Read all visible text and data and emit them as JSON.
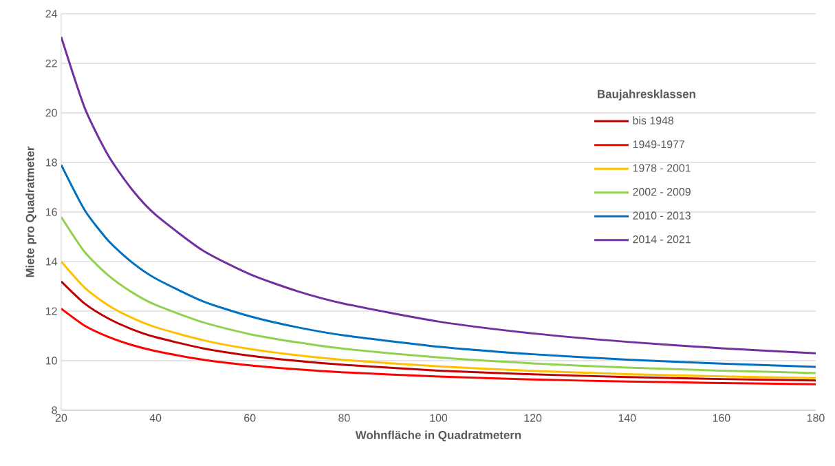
{
  "chart_data": {
    "type": "line",
    "xlabel": "Wohnfläche in Quadratmetern",
    "ylabel": "Miete pro Quadratmeter",
    "legend_title": "Baujahresklassen",
    "legend": "right",
    "grid": "y",
    "marker": "none",
    "line_style": "solid",
    "xlim": [
      20,
      180
    ],
    "xticks": [
      20,
      40,
      60,
      80,
      100,
      120,
      140,
      160,
      180
    ],
    "ylim": [
      8,
      24
    ],
    "yticks": [
      8,
      10,
      12,
      14,
      16,
      18,
      20,
      22,
      24
    ],
    "x": [
      20,
      25,
      30,
      35,
      40,
      50,
      60,
      70,
      80,
      100,
      120,
      140,
      160,
      180
    ],
    "series": [
      {
        "name": "bis 1948",
        "color": "#c00000",
        "values": [
          13.2,
          12.3,
          11.7,
          11.27,
          10.95,
          10.5,
          10.2,
          9.99,
          9.83,
          9.6,
          9.45,
          9.34,
          9.26,
          9.2
        ]
      },
      {
        "name": "1949-1977",
        "color": "#ff0000",
        "values": [
          12.1,
          11.41,
          10.96,
          10.63,
          10.39,
          10.04,
          9.81,
          9.65,
          9.53,
          9.36,
          9.24,
          9.16,
          9.1,
          9.05
        ]
      },
      {
        "name": "1978 - 2001",
        "color": "#ffc000",
        "values": [
          14.0,
          12.94,
          12.23,
          11.73,
          11.35,
          10.83,
          10.47,
          10.22,
          10.03,
          9.77,
          9.59,
          9.46,
          9.37,
          9.3
        ]
      },
      {
        "name": "2002 - 2009",
        "color": "#92d050",
        "values": [
          15.8,
          14.38,
          13.44,
          12.76,
          12.25,
          11.55,
          11.07,
          10.74,
          10.48,
          10.13,
          9.89,
          9.72,
          9.6,
          9.5
        ]
      },
      {
        "name": "2010 - 2013",
        "color": "#0070c0",
        "values": [
          17.9,
          16.07,
          14.84,
          13.97,
          13.32,
          12.4,
          11.79,
          11.35,
          11.02,
          10.56,
          10.26,
          10.04,
          9.88,
          9.75
        ]
      },
      {
        "name": "2014 - 2021",
        "color": "#7030a0",
        "values": [
          23.06,
          20.19,
          18.27,
          16.91,
          15.89,
          14.45,
          13.49,
          12.81,
          12.3,
          11.58,
          11.1,
          10.76,
          10.5,
          10.3
        ]
      }
    ]
  }
}
